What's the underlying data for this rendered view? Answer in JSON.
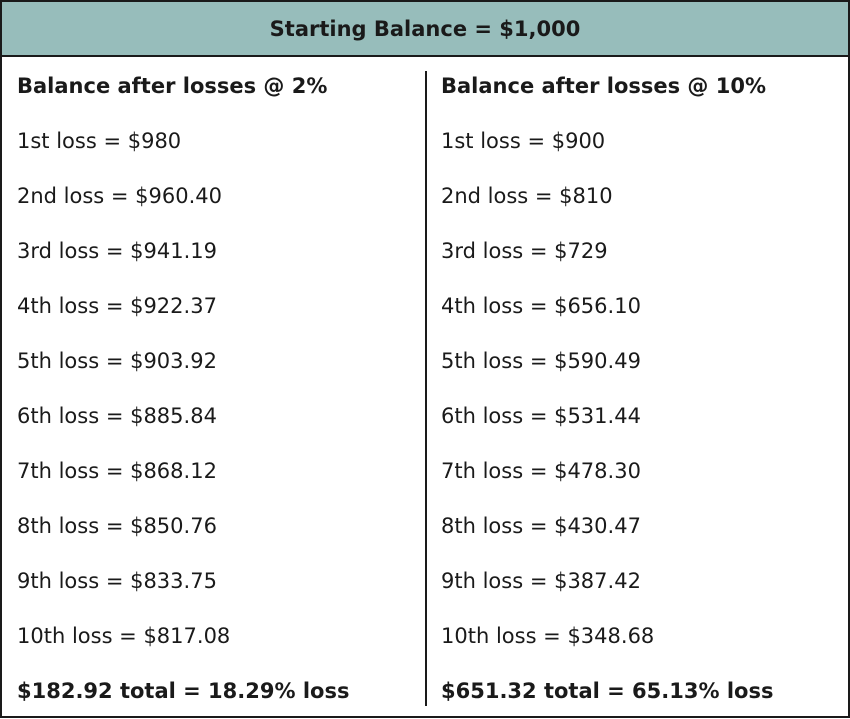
{
  "header": {
    "title": "Starting Balance = $1,000"
  },
  "left": {
    "heading": "Balance after losses @ 2%",
    "rows": [
      "1st loss = $980",
      "2nd loss = $960.40",
      "3rd loss = $941.19",
      "4th loss = $922.37",
      "5th loss = $903.92",
      "6th loss = $885.84",
      "7th loss = $868.12",
      "8th loss = $850.76",
      "9th loss = $833.75",
      "10th loss = $817.08"
    ],
    "total": "$182.92 total = 18.29% loss"
  },
  "right": {
    "heading": "Balance after losses @ 10%",
    "rows": [
      "1st loss = $900",
      "2nd loss = $810",
      "3rd loss = $729",
      "4th loss = $656.10",
      "5th loss = $590.49",
      "6th loss = $531.44",
      "7th loss = $478.30",
      "8th loss = $430.47",
      "9th loss = $387.42",
      "10th loss = $348.68"
    ],
    "total": "$651.32 total = 65.13% loss"
  }
}
